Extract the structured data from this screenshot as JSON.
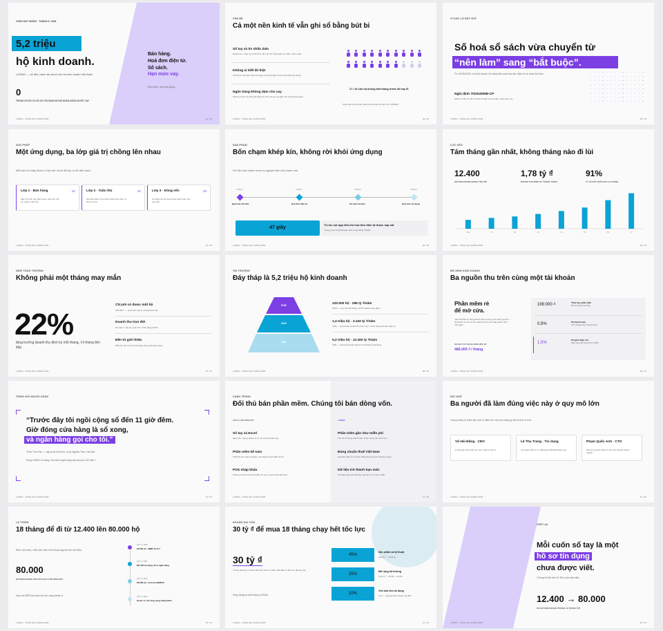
{
  "s1": {
    "eyebrow": "VỐNG HẠT GIỐNG · THÁNG 6 / 2026",
    "hl": "5,2 triệu",
    "title": "hộ kinh doanh.",
    "sub": "LUỒNG — hệ điều hành tài chính cho hộ kinh doanh Việt Nam",
    "zero": "0",
    "zero_label": "TRONG SỐ ĐÓ CÓ HỒ SƠ TÍN DỤNG ĐỦ ĐỂ NGÂN HÀNG DUYỆT VAY",
    "r1": "Bán hàng.",
    "r2": "Hoá đơn điện tử.",
    "r3": "Sổ sách.",
    "r4": "Hạn mức vay.",
    "r5": "Đồn thức, một ứng dụng.",
    "foot": "LUỒNG · VÒNG HẠT GIỐNG 2026",
    "pg": "01 / 15"
  },
  "s2": {
    "eyebrow": "VẤN ĐỀ",
    "title": "Cả một nền kinh tế vẫn ghi sổ bằng bút bi",
    "i1": "Sổ tay và tin nhắn Zalo",
    "i1s": "Doanh thu, công nợ và tồn kho nằm rải rác ở tập giấy, tin nhắn, nhóm chat.",
    "i2": "Không ai biết lãi thật",
    "i2s": "Chủ hộ tự tính tiền mặt cuối ngày và không biết mình có lãi thật hay không.",
    "i3": "Ngân hàng không dám cho vay",
    "i3s": "Không có lịch sử dòng tiền đã xác minh, hồ sơ vay gần như không thể duyệt.",
    "stat": "17 / 20 chủ hộ không biết tháng trước lãi hay lỗ",
    "src": "Khảo sát 412 hộ kinh doanh tại Hà Nội và Cần Thơ, 05/2026.",
    "foot": "LUỒNG · VÒNG HẠT GIỐNG 2026",
    "pg": "02 / 15"
  },
  "s3": {
    "eyebrow": "VÌ SAO LÀ BÂY GIỜ",
    "title": "Số hoá sổ sách vừa chuyển từ",
    "hl": "“nên làm” sang “bắt buộc”.",
    "sub": "Từ 01/06/2025, hộ kinh doanh kê khai phải xuất hoá đơn điện tử từ máy tính tiền.",
    "law": "Nghị định 70/2025/NĐ-CP",
    "laws": "Gần 5,2 triệu hộ cần số hoá sổ sách và hoá đơn trong năm nay.",
    "foot": "LUỒNG · VÒNG HẠT GIỐNG 2026",
    "pg": "03 / 15"
  },
  "s4": {
    "eyebrow": "GIẢI PHÁP",
    "title": "Một ứng dụng, ba lớp giá trị chồng lên nhau",
    "sub": "Mỗi lớp chỉ chạy được vì lớp bên dưới đã tạo ra dữ liệu sạch.",
    "l1": "Lớp 1 · Bán hàng",
    "n1": "01",
    "d1": "Máy tính tiền trên điện thoại, quét mã, ghi nợ, quản lý tồn kho.",
    "l2": "Lớp 2 · Tuân thủ",
    "n2": "02",
    "d2": "Hoá đơn điện tử và phân thống tiên thuế, tờ khai tự sinh.",
    "l3": "Lớp 3 · Dòng vốn",
    "n3": "03",
    "d3": "12 tháng dữ liệu bán hàng thành hạn mức vay thật.",
    "foot": "LUỒNG · VÒNG HẠT GIỐNG 2026",
    "pg": "04 / 15"
  },
  "s5": {
    "eyebrow": "SẢN PHẨM",
    "title": "Bốn chạm khép kín, không rời khỏi ứng dụng",
    "sub": "Dữ liệu của chạm trước là nguyên liệu của chạm sau.",
    "c1": "CHẠM 1",
    "c1l": "Quét mã, thu tiền",
    "c2": "CHẠM 2",
    "c2l": "Hoá đơn điện tử",
    "c3": "CHẠM 3",
    "c3l": "Sổ sách và thuế",
    "c4": "CHẠM 4",
    "c4l": "Hạn mức tín dụng",
    "box": "47 giây",
    "t": "Từ lúc mở app đến khi hoá đơn điện tử được cấp mã",
    "ts": "Trung vị trên 214.000 giao dịch trong tháng 7/2026.",
    "foot": "LUỒNG · VÒNG HẠT GIỐNG 2026",
    "pg": "05 / 15"
  },
  "s6": {
    "eyebrow": "LỰC KÉO",
    "title": "Tám tháng gần nhất, không tháng nào đi lùi",
    "k1": "12.400",
    "k1l": "HỘ KINH DOANH ĐANG TRẢ PHÍ",
    "k2": "1,78 tỷ ₫",
    "k2l": "DOANH THU ĐỊNH KỲ THÁNG 7/2026",
    "k3": "91%",
    "k3l": "TỶ LỆ GIỮ CHÂN SAU 12 THÁNG",
    "foot": "LUỒNG · VÒNG HẠT GIỐNG 2026",
    "pg": "06 / 15"
  },
  "chart_data": {
    "type": "bar",
    "categories": [
      "T12",
      "T1",
      "T2",
      "T3",
      "T4",
      "T5",
      "T6",
      "T7"
    ],
    "values": [
      1.8,
      2.2,
      2.5,
      3.0,
      3.6,
      4.3,
      5.8,
      7.2
    ]
  },
  "s7": {
    "eyebrow": "NHỊP TĂNG TRƯỞNG",
    "title": "Không phải một tháng may mắn",
    "big": "22%",
    "bigs": "tăng trưởng doanh thu định kỳ mỗi tháng, 14 tháng liên tiếp.",
    "a": "Chi phí có được một hộ",
    "as": "418.000 ₫ — hoàn vốn sau 2,1 tháng thuê bao",
    "b": "Doanh thu trọn đời",
    "bs": "8,4 triệu ₫ mỗi hộ, tỷ lệ LTV / CAC bằng 20 lần",
    "c": "Đến từ giới thiệu",
    "cs": "38% hộ mới do chính hộ đang dùng giới thiệu sang.",
    "foot": "LUỒNG · VÒNG HẠT GIỐNG 2026",
    "pg": "07 / 15"
  },
  "s8": {
    "eyebrow": "THỊ TRƯỜNG",
    "title": "Đáy tháp là 5,2 triệu hộ kinh doanh",
    "som": "SOM",
    "sam": "SAM",
    "tam": "TAM",
    "a": "120.000 hộ · 286 tỷ ₫/năm",
    "as": "SOM — mục tiêu 36 tháng, 13 tỉnh thành trọng điểm",
    "b": "1,4 triệu hộ · 3.340 tỷ ₫/năm",
    "bs": "SAM — hộ kê khai, doanh thu trên 1 tỷ ₫, buộc dùng hoá đơn điện tử",
    "c": "5,2 triệu hộ · 12.400 tỷ ₫/năm",
    "cs": "TAM — toàn bộ hộ kinh doanh cá thể đang hoạt động",
    "foot": "LUỒNG · VÒNG HẠT GIỐNG 2026",
    "pg": "08 / 15"
  },
  "s9": {
    "eyebrow": "MÔ HÌNH KINH DOANH",
    "title": "Ba nguồn thu trên cùng một tài khoản",
    "t1": "Phần mềm rẻ",
    "t2": "để mở cửa.",
    "p": "Tiền thật đến từ dòng thanh toán và dòng vốn chảy qua đó — tài khoản chi mở ra cho phép chủ hộ nhìn thấy phần mềm mỗi ngày.",
    "rl": "DOANH THU TRUNG BÌNH MỖI HỘ",
    "rv": "486.000 ₫ / tháng",
    "v1": "199.000 ₫",
    "v1t": "Thuê bao phần mềm",
    "v1s": "Mỗi chi nhánh bán hàng",
    "v2": "0,9%",
    "v2t": "Phí thanh toán",
    "v2s": "Trên mỗi giao dịch chuyển khoản",
    "v3": "1,5%",
    "v3t": "Phí giới thiệu vốn",
    "v3s": "Ngân hàng đối tác trả cho LUỒNG",
    "foot": "LUỒNG · VÒNG HẠT GIỐNG 2026",
    "pg": "09 / 15"
  },
  "s10": {
    "eyebrow": "TIẾNG NÓI NGƯỜI DÙNG",
    "q1": "“Trước đây tôi ngồi cộng sổ đến 11 giờ đêm.",
    "q2": "Giờ đóng cửa hàng là sổ xong,",
    "q3": "và ngân hàng gọi cho tôi.”",
    "who": "Trần Thu Hà — tạp hoá Hà Anh, chợ Nghĩa Tân, Hà Nội.",
    "n": "Dùng LUỒNG 14 tháng. Vừa được ngân hàng cấp hạn mức 120 triệu ₫.",
    "foot": "LUỒNG · VÒNG HẠT GIỐNG 2026",
    "pg": "10 / 15"
  },
  "s11": {
    "eyebrow": "CẠNH TRANH",
    "title": "Đối thủ bán phần mềm. Chúng tôi bán dòng vốn.",
    "lh": "CÁCH LÀM HÔM NAY",
    "rh": "LUỒNG",
    "l1": "Sổ tay và Excel",
    "l1s": "Miễn phí, nhưng không ai tin nổi dòng dữ liệu sau.",
    "l2": "Phần mềm kế toán",
    "l2s": "Thiết kế cho doanh nghiệp, quá nặng và quá đắt với hộ.",
    "l3": "POS nhập khẩu",
    "l3s": "Không nối được hoá đơn điện tử và cơ quan thuế Việt Nam.",
    "r1": "Phần mềm gần như miễn phí",
    "r1s": "Thu về từ luồng thanh toán và phí dòng vốn phía sau.",
    "r2": "Đúng chuẩn thuế Việt Nam",
    "r2s": "Hoá đơn điện tử, tờ khai, đồng bộ chứng từ thường xuyên.",
    "r3": "Dữ liệu trở thành hạn mức",
    "r3s": "12 tháng giao dịch đổi lấy một hạn mức vay có thật.",
    "foot": "LUỒNG · VÒNG HẠT GIỐNG 2026",
    "pg": "11 / 15"
  },
  "s12": {
    "eyebrow": "ĐỘI NGŨ",
    "title": "Ba người đã làm đúng việc này ở quy mô lớn",
    "sub": "Cùng nhau 6 năm tại một ví điện tử và một công ty tài chính vi mô.",
    "p1": "Vũ Hải Đăng · CEO",
    "p1s": "6 năm làm sản phẩm tại một ví điện tử top 3.",
    "p2": "Lê Thu Trang · Tín dụng",
    "p2s": "Cựu giám đốc rủi ro, đã duyệt 100.000 khoản vay.",
    "p3": "Phạm Quốc Anh · CTO",
    "p3s": "Xây hệ hoá đơn điện tử cho hơn 20.000 doanh nghiệp.",
    "foot": "LUỒNG · VÒNG HẠT GIỐNG 2026",
    "pg": "12 / 15"
  },
  "s13": {
    "eyebrow": "LỘ TRÌNH",
    "title": "18 tháng để đi từ 12.400 lên 80.000 hộ",
    "sub": "Bốn cột mốc, mỗi cột mốc mở khoá nguồn thu kế tiếp.",
    "big": "80.000",
    "bigl": "HỘ KINH DOANH TRẢ PHÍ VÀO CUỐI NĂM 2027",
    "note": "Hoà vốn EBITDA trước khi mở vòng Series A.",
    "m1": "QUÝ 4 / 2026",
    "m1t": "20.000 hộ · MRR 4,5 tỷ ₫",
    "m2": "QUÝ 1 / 2027",
    "m2t": "Mở API tín dụng với 2 ngân hàng",
    "m3": "QUÝ 3 / 2027",
    "m3t": "35.000 hộ · hoà vốn EBITDA",
    "m4": "QUÝ 4 / 2027",
    "m4t": "Series A, mở rộng sang Campuchia",
    "foot": "LUỒNG · VÒNG HẠT GIỐNG 2026",
    "pg": "13 / 15"
  },
  "s14": {
    "eyebrow": "KHOẢN GỌI VỐN",
    "title": "30 tỷ ₫ để mua 18 tháng chạy hết tốc lực",
    "big": "30 tỷ ₫",
    "bigs": "Tương đương 1,2 triệu USD, đổi 12% cổ phần. Nhà đầu tư dẫn vốn đã cam kết.",
    "close": "Vòng đóng dự kiến tháng 11/2026.",
    "a": "45%",
    "at": "Sản phẩm và kỹ thuật",
    "as": "13,5 tỷ ₫ · 18 kỹ sư",
    "b": "35%",
    "bt": "Mở rộng thị trường",
    "bs": "10,5 tỷ ₫ · 40 tỉnh · 13 tỉnh",
    "c": "20%",
    "ct": "Vốn mồi cho tín dụng",
    "cs": "6 tỷ ₫ · quỹ bảo lãnh khoản vay đầu",
    "foot": "LUỒNG · VÒNG HẠT GIỐNG 2026",
    "pg": "14 / 15"
  },
  "s15": {
    "eyebrow": "CHỐT LẠI",
    "t1": "Mỗi cuốn sổ tay là một",
    "hl": "hồ sơ tín dụng",
    "t3": "chưa được viết.",
    "sub": "Chúng tôi đã viết 12.400 cuốn đầu tiên.",
    "big": "12.400 → 80.000",
    "bigl": "SỐ HỘ KINH DOANH TRONG 18 THÁNG TỚI",
    "foot": "LUỒNG · VÒNG HẠT GIỐNG 2026",
    "pg": "15 / 15"
  }
}
